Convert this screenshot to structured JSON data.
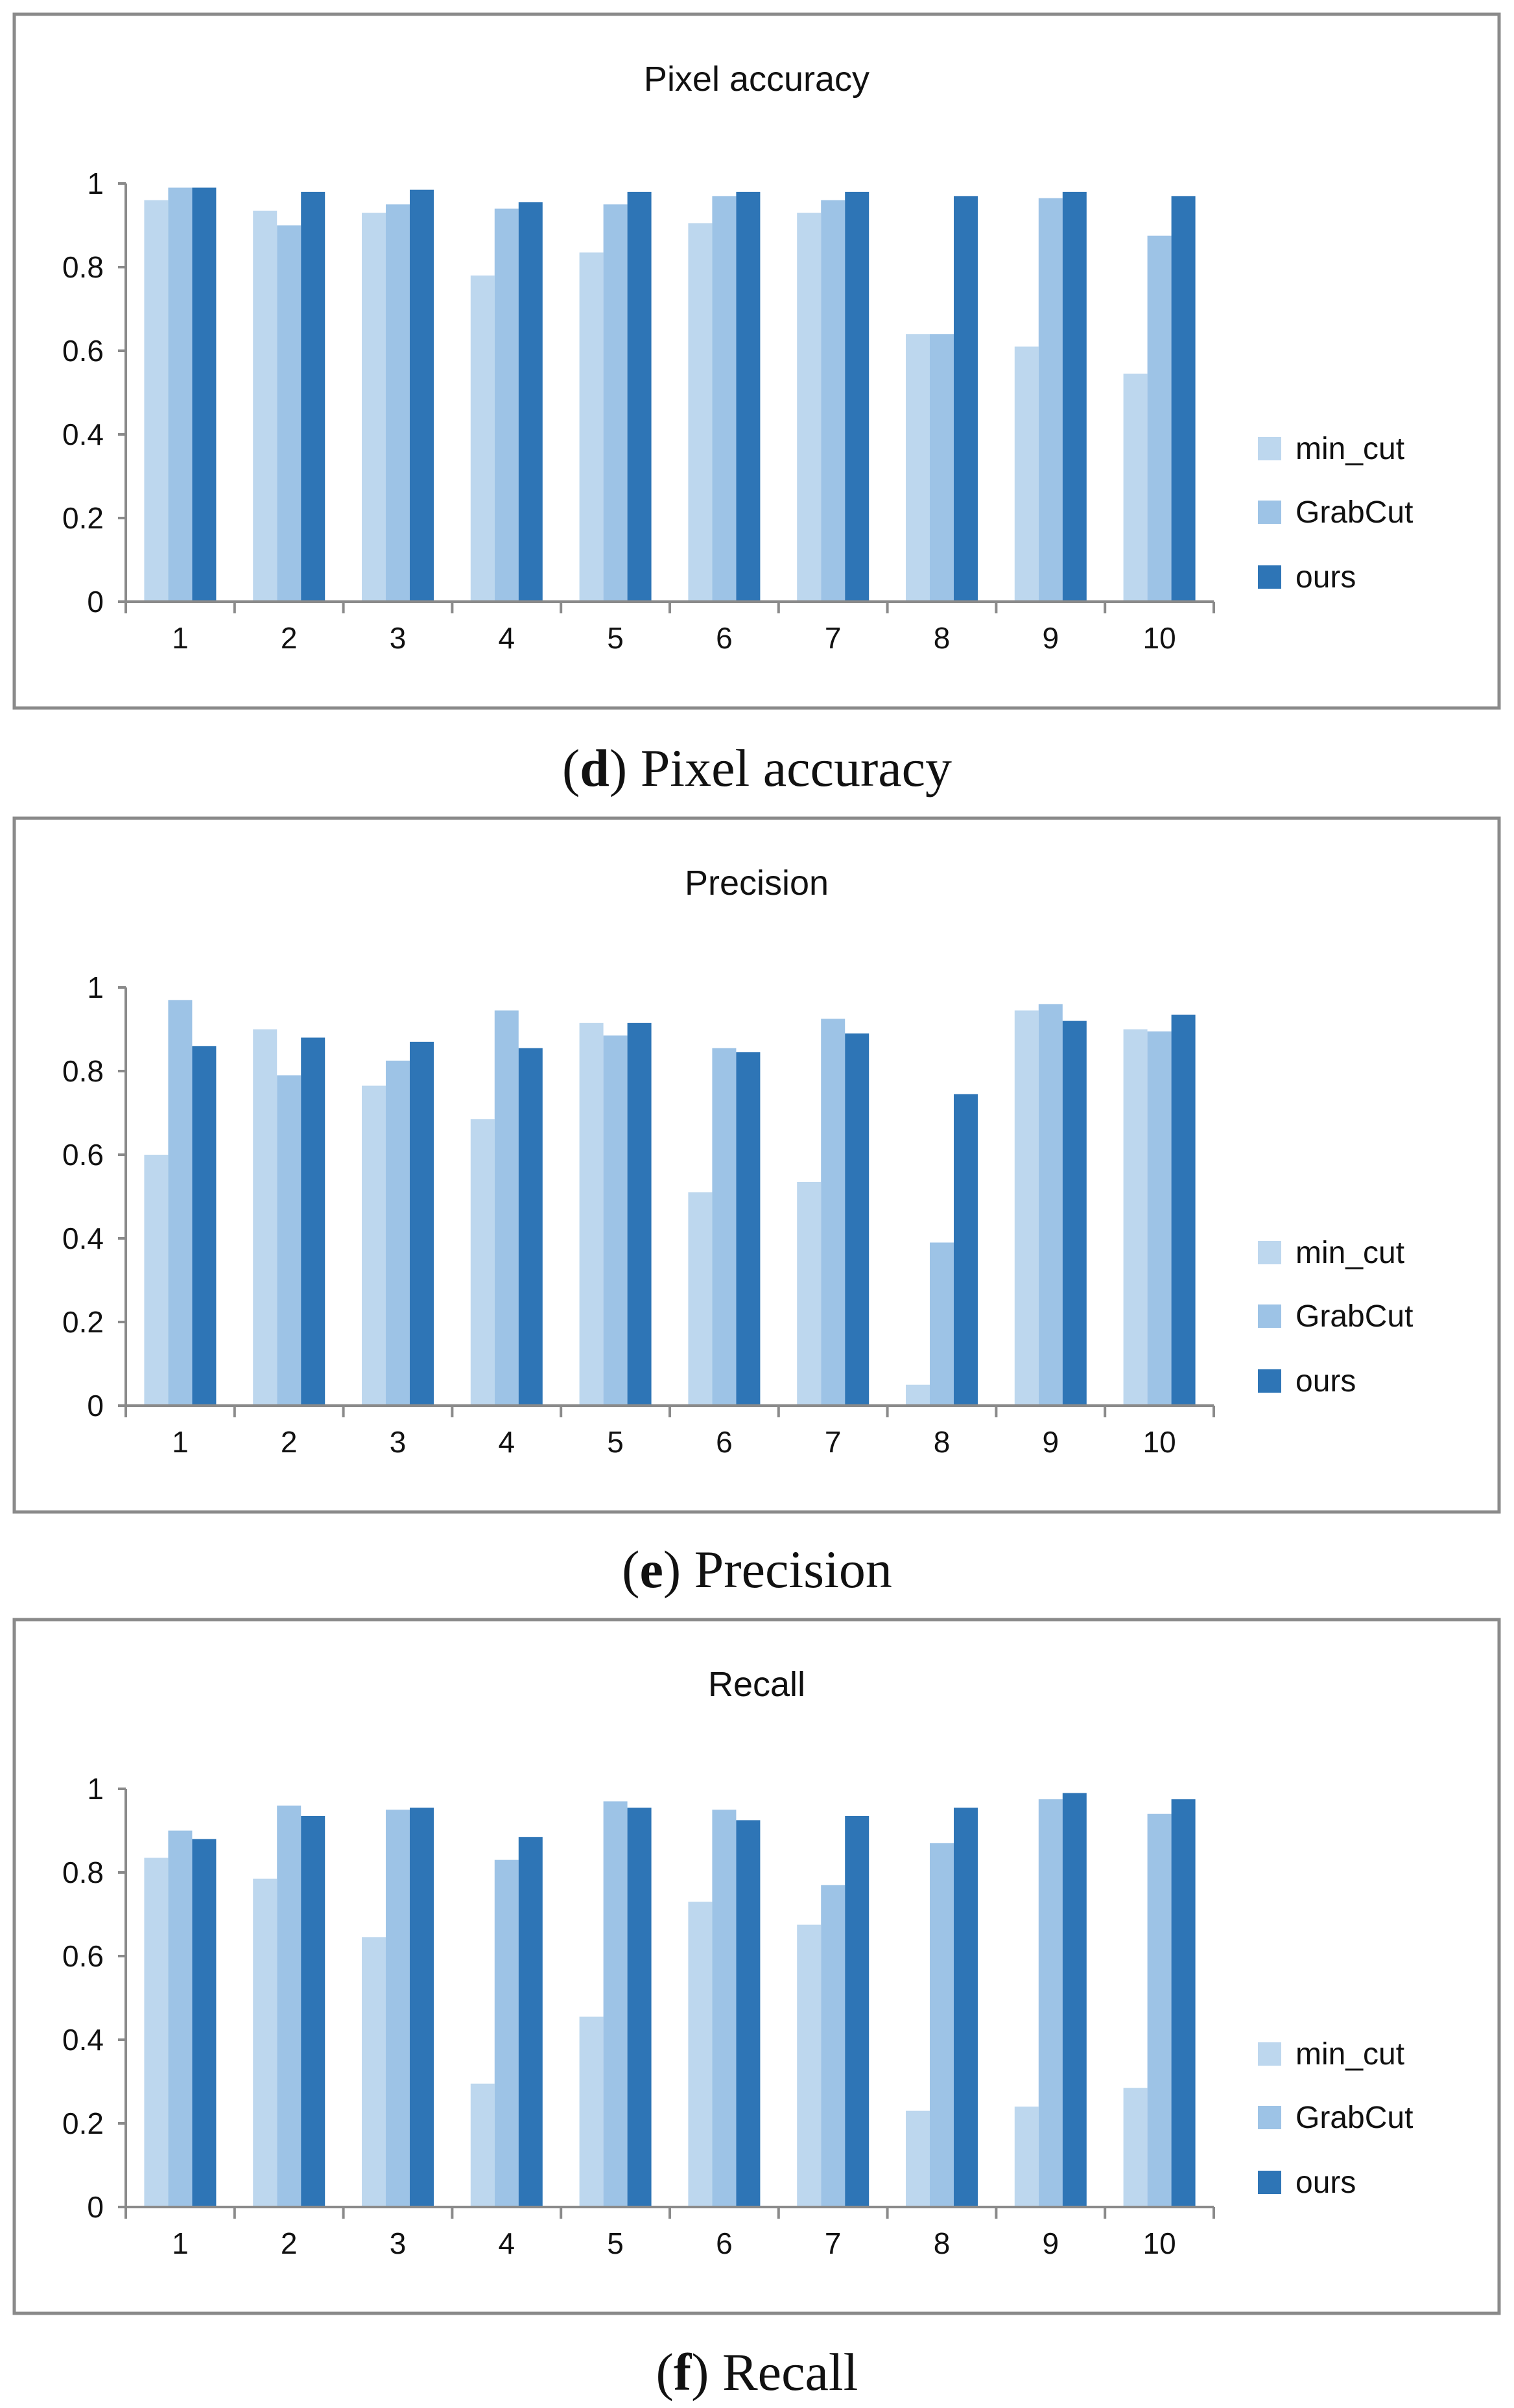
{
  "colors": {
    "min_cut": "#bdd7ee",
    "GrabCut": "#9dc3e6",
    "ours": "#2e75b6"
  },
  "captions": [
    {
      "letter": "d",
      "text": "Pixel accuracy"
    },
    {
      "letter": "e",
      "text": "Precision"
    },
    {
      "letter": "f",
      "text": "Recall"
    }
  ],
  "chart_data": [
    {
      "type": "bar",
      "title": "Pixel accuracy",
      "categories": [
        "1",
        "2",
        "3",
        "4",
        "5",
        "6",
        "7",
        "8",
        "9",
        "10"
      ],
      "ylim": [
        0,
        1
      ],
      "yticks": [
        "0",
        "0.2",
        "0.4",
        "0.6",
        "0.8",
        "1"
      ],
      "legend_position": "right",
      "grid": false,
      "series": [
        {
          "name": "min_cut",
          "values": [
            0.96,
            0.935,
            0.93,
            0.78,
            0.835,
            0.905,
            0.93,
            0.64,
            0.61,
            0.545
          ]
        },
        {
          "name": "GrabCut",
          "values": [
            0.99,
            0.9,
            0.95,
            0.94,
            0.95,
            0.97,
            0.96,
            0.64,
            0.965,
            0.875
          ]
        },
        {
          "name": "ours",
          "values": [
            0.99,
            0.98,
            0.985,
            0.955,
            0.98,
            0.98,
            0.98,
            0.97,
            0.98,
            0.97
          ]
        }
      ]
    },
    {
      "type": "bar",
      "title": "Precision",
      "categories": [
        "1",
        "2",
        "3",
        "4",
        "5",
        "6",
        "7",
        "8",
        "9",
        "10"
      ],
      "ylim": [
        0,
        1
      ],
      "yticks": [
        "0",
        "0.2",
        "0.4",
        "0.6",
        "0.8",
        "1"
      ],
      "legend_position": "right",
      "grid": false,
      "series": [
        {
          "name": "min_cut",
          "values": [
            0.6,
            0.9,
            0.765,
            0.685,
            0.915,
            0.51,
            0.535,
            0.05,
            0.945,
            0.9
          ]
        },
        {
          "name": "GrabCut",
          "values": [
            0.97,
            0.79,
            0.825,
            0.945,
            0.885,
            0.855,
            0.925,
            0.39,
            0.96,
            0.895
          ]
        },
        {
          "name": "ours",
          "values": [
            0.86,
            0.88,
            0.87,
            0.855,
            0.915,
            0.845,
            0.89,
            0.745,
            0.92,
            0.935
          ]
        }
      ]
    },
    {
      "type": "bar",
      "title": "Recall",
      "categories": [
        "1",
        "2",
        "3",
        "4",
        "5",
        "6",
        "7",
        "8",
        "9",
        "10"
      ],
      "ylim": [
        0,
        1
      ],
      "yticks": [
        "0",
        "0.2",
        "0.4",
        "0.6",
        "0.8",
        "1"
      ],
      "legend_position": "right",
      "grid": false,
      "series": [
        {
          "name": "min_cut",
          "values": [
            0.835,
            0.785,
            0.645,
            0.295,
            0.455,
            0.73,
            0.675,
            0.23,
            0.24,
            0.285
          ]
        },
        {
          "name": "GrabCut",
          "values": [
            0.9,
            0.96,
            0.95,
            0.83,
            0.97,
            0.95,
            0.77,
            0.87,
            0.975,
            0.94
          ]
        },
        {
          "name": "ours",
          "values": [
            0.88,
            0.935,
            0.955,
            0.885,
            0.955,
            0.925,
            0.935,
            0.955,
            0.99,
            0.975
          ]
        }
      ]
    }
  ]
}
